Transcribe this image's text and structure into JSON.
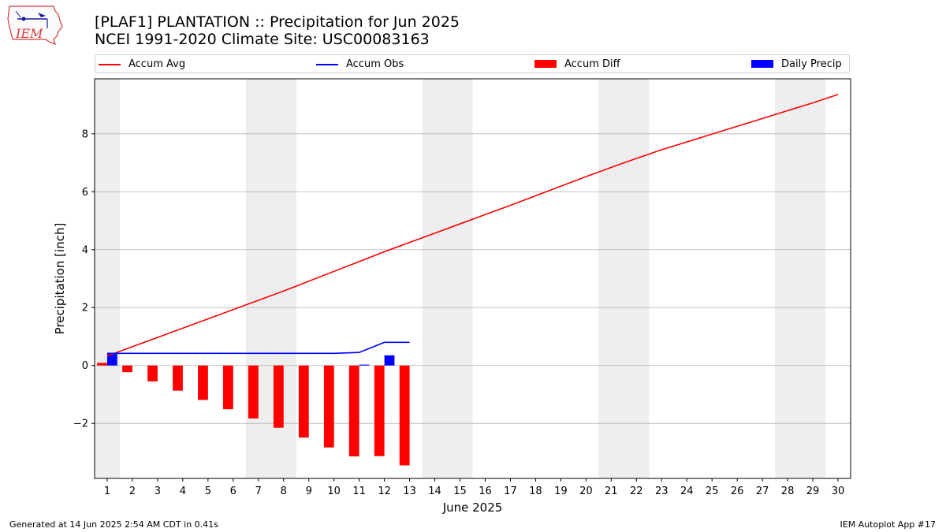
{
  "header": {
    "title_line1": "[PLAF1] PLANTATION :: Precipitation for Jun 2025",
    "title_line2": "NCEI 1991-2020 Climate Site: USC00083163"
  },
  "logo": {
    "text": "IEM",
    "icon": "iowa-state-outline-logo"
  },
  "legend": [
    {
      "label": "Accum Avg",
      "color": "#ff0000",
      "kind": "line"
    },
    {
      "label": "Accum Obs",
      "color": "#0000ff",
      "kind": "line"
    },
    {
      "label": "Accum Diff",
      "color": "#ff0000",
      "kind": "bar"
    },
    {
      "label": "Daily Precip",
      "color": "#0000ff",
      "kind": "bar"
    }
  ],
  "footer": {
    "left": "Generated at 14 Jun 2025 2:54 AM CDT in 0.41s",
    "right": "IEM Autoplot App #17"
  },
  "chart_data": {
    "type": "bar",
    "title": "[PLAF1] PLANTATION :: Precipitation for Jun 2025",
    "subtitle": "NCEI 1991-2020 Climate Site: USC00083163",
    "xlabel": "June 2025",
    "ylabel": "Precipitation [inch]",
    "xlim": [
      0.5,
      30.5
    ],
    "ylim": [
      -3.9,
      9.9
    ],
    "yticks": [
      -2,
      0,
      2,
      4,
      6,
      8
    ],
    "x": [
      1,
      2,
      3,
      4,
      5,
      6,
      7,
      8,
      9,
      10,
      11,
      12,
      13,
      14,
      15,
      16,
      17,
      18,
      19,
      20,
      21,
      22,
      23,
      24,
      25,
      26,
      27,
      28,
      29,
      30
    ],
    "weekend_days": [
      1,
      7,
      8,
      14,
      15,
      21,
      22,
      28,
      29
    ],
    "grid": "horizontal",
    "legend_position": "top",
    "series": [
      {
        "name": "Accum Avg",
        "type": "line",
        "color": "#ff0000",
        "x": [
          1,
          2,
          3,
          4,
          5,
          6,
          7,
          8,
          9,
          10,
          11,
          12,
          13,
          14,
          15,
          16,
          17,
          18,
          19,
          20,
          21,
          22,
          23,
          24,
          25,
          26,
          27,
          28,
          29,
          30
        ],
        "values": [
          0.33,
          0.65,
          0.97,
          1.29,
          1.61,
          1.93,
          2.25,
          2.57,
          2.91,
          3.25,
          3.59,
          3.93,
          4.25,
          4.57,
          4.89,
          5.21,
          5.53,
          5.86,
          6.19,
          6.52,
          6.84,
          7.15,
          7.45,
          7.72,
          7.99,
          8.26,
          8.53,
          8.8,
          9.07,
          9.36
        ]
      },
      {
        "name": "Accum Obs",
        "type": "line",
        "color": "#0000ff",
        "x": [
          1,
          2,
          3,
          4,
          5,
          6,
          7,
          8,
          9,
          10,
          11,
          12,
          13
        ],
        "values": [
          0.42,
          0.42,
          0.42,
          0.42,
          0.42,
          0.42,
          0.42,
          0.42,
          0.42,
          0.42,
          0.45,
          0.8,
          0.8
        ]
      },
      {
        "name": "Accum Diff",
        "type": "bar",
        "color": "#ff0000",
        "x": [
          1,
          2,
          3,
          4,
          5,
          6,
          7,
          8,
          9,
          10,
          11,
          12,
          13
        ],
        "values": [
          0.09,
          -0.23,
          -0.55,
          -0.87,
          -1.19,
          -1.51,
          -1.83,
          -2.15,
          -2.49,
          -2.83,
          -3.14,
          -3.13,
          -3.45
        ]
      },
      {
        "name": "Daily Precip",
        "type": "bar",
        "color": "#0000ff",
        "x": [
          1,
          2,
          3,
          4,
          5,
          6,
          7,
          8,
          9,
          10,
          11,
          12,
          13
        ],
        "values": [
          0.42,
          0,
          0,
          0,
          0,
          0,
          0,
          0,
          0,
          0,
          0.03,
          0.35,
          0
        ]
      }
    ]
  }
}
